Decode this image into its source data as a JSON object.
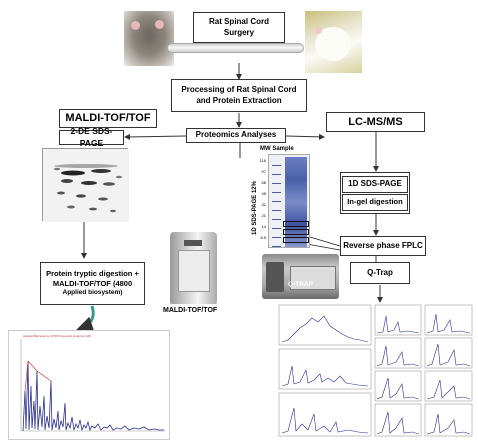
{
  "boxes": {
    "surgery": [
      "Rat Spinal Cord",
      "Surgery"
    ],
    "processing": [
      "Processing of Rat Spinal Cord",
      "and Protein  Extraction"
    ],
    "proteomics": "Proteomics Analyses",
    "maldi_title": "MALDI-TOF/TOF",
    "sds_2de": "2-DE SDS-PAGE",
    "lcms_title": "LC-MS/MS",
    "sds_1d": "1D SDS-PAGE",
    "ingel": "In-gel digestion",
    "fplc": "Reverse phase FPLC",
    "qtrap_box": "Q-Trap",
    "tryptic": [
      "Protein tryptic digestion +",
      "MALDI-TOF/TOF (4800",
      "Applied biosystem)"
    ]
  },
  "labels": {
    "maldi_instrument": "MALDI-TOF/TOF",
    "qtrap_instrument": "Q-TRAP",
    "gel_header": "MW Sample",
    "gel_side": "1D SDS-PAGE 12%",
    "gel_markers": [
      "116",
      "97",
      "66",
      "45",
      "31",
      "21",
      "14",
      "6.5"
    ]
  },
  "colors": {
    "gel_lane": "#5a6fb0",
    "spectrum_line": "#2a2f8a",
    "spectrum_red": "#c03030",
    "arrow": "#333333"
  }
}
